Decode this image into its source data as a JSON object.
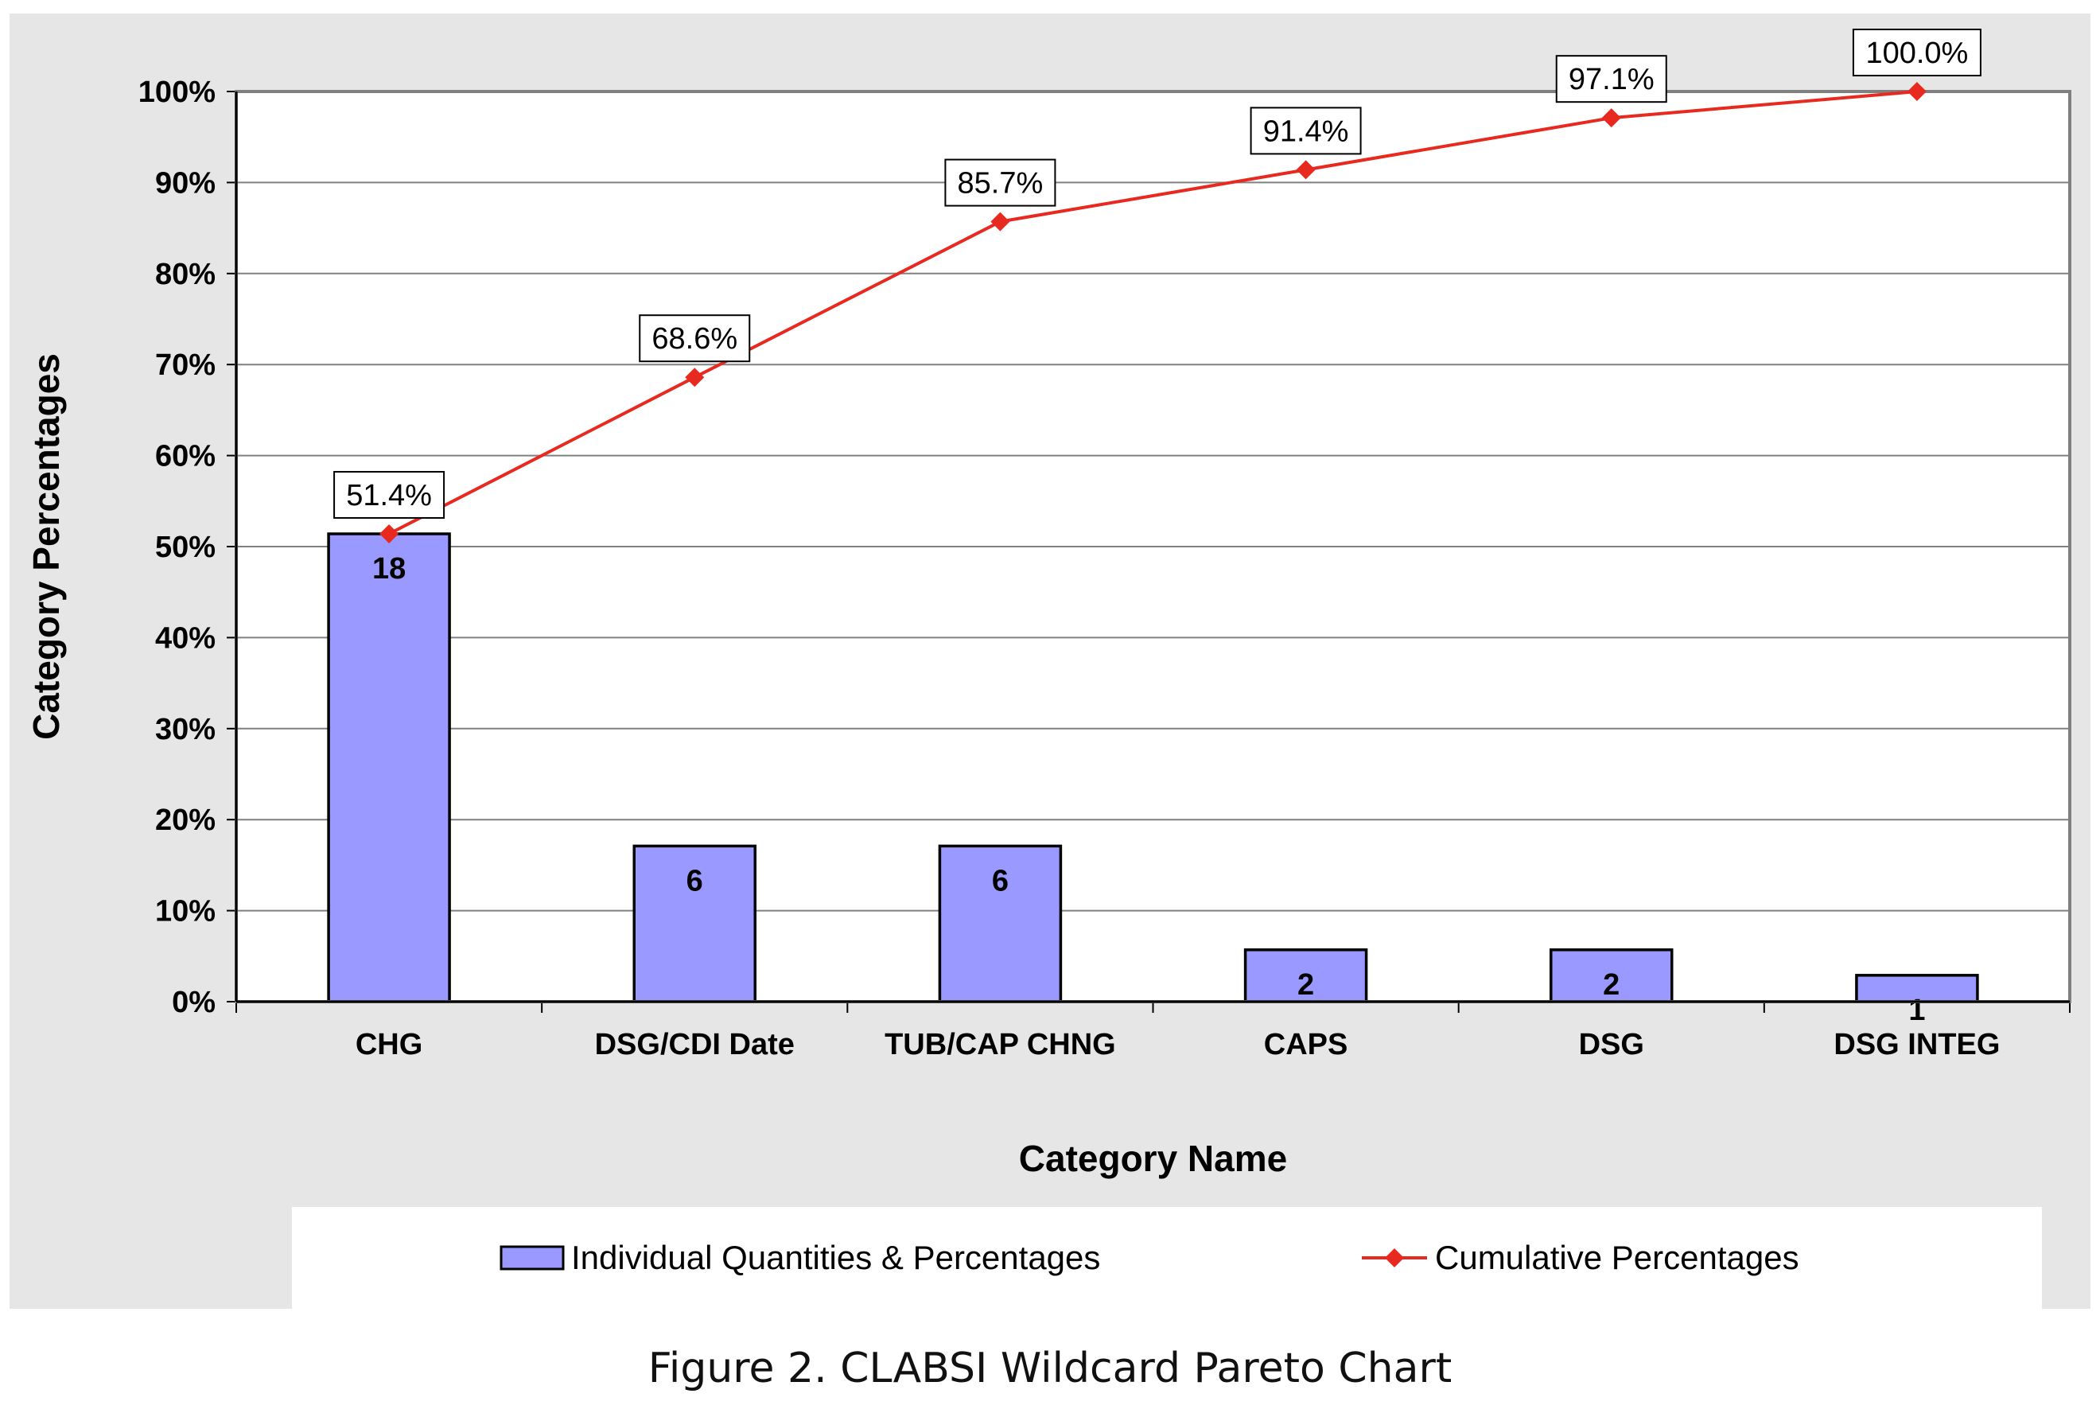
{
  "caption": "Figure 2. CLABSI Wildcard Pareto Chart",
  "chart_data": {
    "type": "bar",
    "title": "",
    "xlabel": "Category Name",
    "ylabel": "Category Percentages",
    "ylim": [
      0,
      100
    ],
    "y_ticks": [
      "0%",
      "10%",
      "20%",
      "30%",
      "40%",
      "50%",
      "60%",
      "70%",
      "80%",
      "90%",
      "100%"
    ],
    "grid": true,
    "legend_position": "bottom",
    "categories": [
      "CHG",
      "DSG/CDI Date",
      "TUB/CAP CHNG",
      "CAPS",
      "DSG",
      "DSG INTEG"
    ],
    "series": [
      {
        "name": "Individual Quantities & Percentages",
        "type": "bar",
        "color": "#9999ff",
        "counts": [
          18,
          6,
          6,
          2,
          2,
          1
        ],
        "count_labels": [
          "18",
          "6",
          "6",
          "2",
          "2",
          "1"
        ],
        "values": [
          51.4,
          17.1,
          17.1,
          5.7,
          5.7,
          2.9
        ]
      },
      {
        "name": "Cumulative Percentages",
        "type": "line",
        "color": "#e8291f",
        "values": [
          51.4,
          68.6,
          85.7,
          91.4,
          97.1,
          100.0
        ],
        "value_labels": [
          "51.4%",
          "68.6%",
          "85.7%",
          "91.4%",
          "97.1%",
          "100.0%"
        ]
      }
    ]
  }
}
